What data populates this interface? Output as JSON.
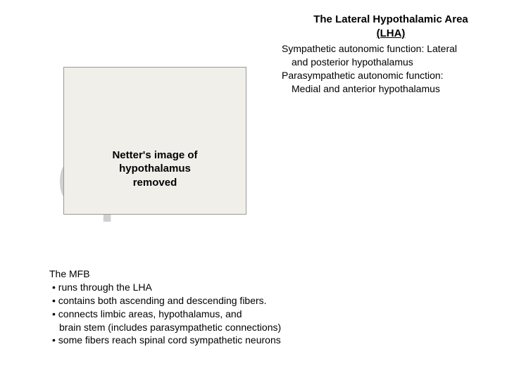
{
  "watermark": "open",
  "header": {
    "title": "The Lateral Hypothalamic Area",
    "subtitle": "(LHA)"
  },
  "autonomic": {
    "sym_line1": "Sympathetic autonomic function: Lateral",
    "sym_line2": "and posterior hypothalamus",
    "para_line1": "Parasympathetic autonomic function:",
    "para_line2": "Medial and anterior hypothalamus"
  },
  "image_box": {
    "line1": "Netter's image of",
    "line2": "hypothalamus",
    "line3": "removed"
  },
  "mfb": {
    "heading": "The MFB",
    "bullets": [
      "runs through the LHA",
      "contains both ascending and descending fibers.",
      "connects limbic areas, hypothalamus, and\nbrain stem (includes parasympathetic connections)",
      "some fibers reach spinal cord sympathetic neurons"
    ]
  },
  "colors": {
    "background": "#ffffff",
    "box_fill": "#f0efe9",
    "box_border": "#999999",
    "watermark": "#d0d0d0",
    "text": "#000000"
  }
}
